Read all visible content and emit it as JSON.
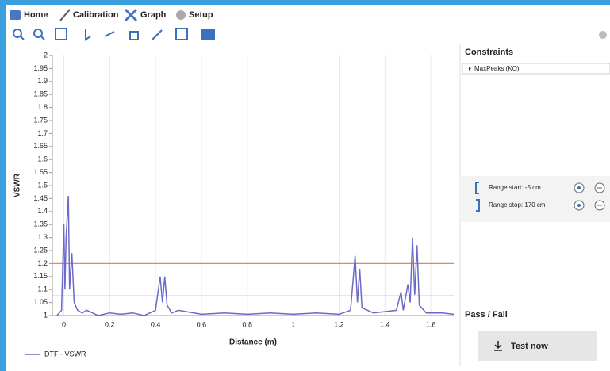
{
  "toolbar": {
    "tabs": [
      "Home",
      "Calibration",
      "Graph",
      "Setup"
    ]
  },
  "chart_data": {
    "type": "line",
    "x_label": "Distance (m)",
    "y_label": "VSWR",
    "x": [
      -0.03,
      -0.01,
      0.0,
      0.005,
      0.01,
      0.02,
      0.025,
      0.035,
      0.045,
      0.06,
      0.08,
      0.1,
      0.15,
      0.2,
      0.25,
      0.3,
      0.35,
      0.4,
      0.42,
      0.43,
      0.44,
      0.45,
      0.47,
      0.5,
      0.6,
      0.7,
      0.8,
      0.9,
      1.0,
      1.1,
      1.2,
      1.25,
      1.27,
      1.28,
      1.29,
      1.3,
      1.35,
      1.45,
      1.47,
      1.48,
      1.5,
      1.51,
      1.52,
      1.53,
      1.54,
      1.55,
      1.58,
      1.65,
      1.7
    ],
    "series": [
      {
        "name": "DTF - VSWR",
        "color": "#6a6ac8",
        "values": [
          1.0,
          1.02,
          1.35,
          1.1,
          1.3,
          1.46,
          1.1,
          1.24,
          1.05,
          1.02,
          1.01,
          1.02,
          1.0,
          1.01,
          1.005,
          1.01,
          1.0,
          1.02,
          1.15,
          1.05,
          1.15,
          1.04,
          1.01,
          1.02,
          1.005,
          1.01,
          1.005,
          1.01,
          1.005,
          1.01,
          1.005,
          1.02,
          1.23,
          1.05,
          1.18,
          1.03,
          1.01,
          1.02,
          1.09,
          1.02,
          1.12,
          1.05,
          1.3,
          1.08,
          1.27,
          1.04,
          1.01,
          1.01,
          1.005
        ]
      }
    ],
    "xlim": [
      -0.05,
      1.7
    ],
    "xticks": [
      0,
      0.2,
      0.4,
      0.6,
      0.8,
      1,
      1.2,
      1.4,
      1.6
    ],
    "ylim": [
      1,
      2
    ],
    "yticks": [
      1,
      1.05,
      1.1,
      1.15,
      1.2,
      1.25,
      1.3,
      1.35,
      1.4,
      1.45,
      1.5,
      1.55,
      1.6,
      1.65,
      1.7,
      1.75,
      1.8,
      1.85,
      1.9,
      1.95,
      2
    ],
    "limit_lines": [
      1.2,
      1.075
    ],
    "limit_color": "#f08060",
    "grid": true
  },
  "constraints": {
    "title": "Constraints",
    "items": [
      "MaxPeaks (KO)"
    ]
  },
  "range": {
    "start": "Range start: -5 cm",
    "stop": "Range stop: 170 cm"
  },
  "pass_fail": {
    "title": "Pass / Fail",
    "button": "Test now"
  }
}
